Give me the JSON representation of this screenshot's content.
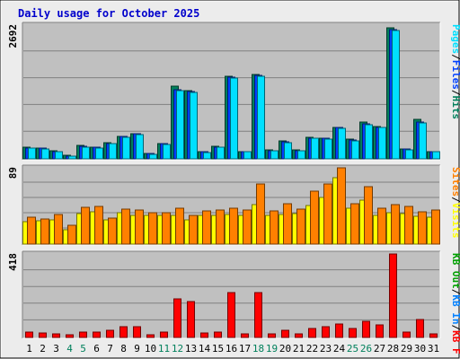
{
  "title": "Daily usage for October 2025",
  "colors": {
    "background": "#ececec",
    "plot": "#c0c0c0",
    "title": "#0000cc",
    "hits": "#00805c",
    "files": "#0040ff",
    "pages": "#00e0ff",
    "visits": "#ffff00",
    "sites": "#ff8000",
    "kb_out": "#00a000",
    "kb_in": "#0080ff",
    "kb_f": "#ff0000",
    "weekend_day": "#00805c",
    "weekday": "#000000"
  },
  "chart_data": [
    {
      "type": "bar",
      "panel": "hits-files-pages",
      "max_label": "2692",
      "ylim": [
        0,
        2692
      ],
      "categories": [
        "1",
        "2",
        "3",
        "4",
        "5",
        "6",
        "7",
        "8",
        "9",
        "10",
        "11",
        "12",
        "13",
        "14",
        "15",
        "16",
        "17",
        "18",
        "19",
        "20",
        "21",
        "22",
        "23",
        "24",
        "25",
        "26",
        "27",
        "28",
        "29",
        "30",
        "31"
      ],
      "weekend_days": [
        "4",
        "5",
        "11",
        "12",
        "18",
        "19",
        "25",
        "26"
      ],
      "legend": [
        {
          "label": "Hits",
          "color": "#00805c"
        },
        {
          "label": "/",
          "color": "#000000"
        },
        {
          "label": "Files",
          "color": "#0040ff"
        },
        {
          "label": "/",
          "color": "#000000"
        },
        {
          "label": "Pages",
          "color": "#00e0ff"
        }
      ],
      "series": [
        {
          "name": "Hits",
          "color": "#00805c",
          "values": [
            230,
            220,
            160,
            70,
            270,
            240,
            320,
            460,
            510,
            110,
            310,
            1460,
            1370,
            140,
            250,
            1660,
            150,
            1700,
            180,
            370,
            180,
            440,
            420,
            640,
            400,
            740,
            650,
            2640,
            190,
            800,
            140
          ]
        },
        {
          "name": "Files",
          "color": "#0040ff",
          "values": [
            220,
            210,
            150,
            60,
            250,
            230,
            310,
            450,
            500,
            100,
            300,
            1400,
            1350,
            140,
            240,
            1640,
            150,
            1680,
            170,
            340,
            170,
            420,
            410,
            630,
            380,
            700,
            640,
            2600,
            190,
            740,
            140
          ]
        },
        {
          "name": "Pages",
          "color": "#00e0ff",
          "values": [
            210,
            200,
            140,
            50,
            240,
            220,
            300,
            440,
            490,
            90,
            290,
            1380,
            1340,
            130,
            230,
            1630,
            140,
            1660,
            160,
            330,
            160,
            410,
            400,
            620,
            370,
            680,
            630,
            2580,
            180,
            720,
            140
          ]
        }
      ]
    },
    {
      "type": "bar",
      "panel": "visits-sites",
      "max_label": "89",
      "ylim": [
        0,
        89
      ],
      "legend": [
        {
          "label": "Visits",
          "color": "#ffff00"
        },
        {
          "label": "/",
          "color": "#000000"
        },
        {
          "label": "Sites",
          "color": "#ff8000"
        }
      ],
      "series": [
        {
          "name": "Visits",
          "color": "#ffff00",
          "values": [
            26,
            27,
            28,
            17,
            36,
            38,
            28,
            37,
            34,
            33,
            34,
            34,
            28,
            33,
            33,
            35,
            33,
            46,
            34,
            35,
            36,
            45,
            54,
            78,
            42,
            51,
            34,
            37,
            36,
            32,
            31
          ]
        },
        {
          "name": "Sites",
          "color": "#ff8000",
          "values": [
            31,
            29,
            35,
            22,
            43,
            44,
            30,
            41,
            40,
            37,
            37,
            42,
            33,
            39,
            40,
            42,
            40,
            70,
            39,
            47,
            41,
            62,
            70,
            89,
            47,
            67,
            42,
            46,
            44,
            38,
            40
          ]
        }
      ]
    },
    {
      "type": "bar",
      "panel": "kbytes",
      "max_label": "418",
      "ylim": [
        0,
        418
      ],
      "legend": [
        {
          "label": "KB F",
          "color": "#ff0000"
        },
        {
          "label": "/",
          "color": "#000000"
        },
        {
          "label": "KB In",
          "color": "#0080ff"
        },
        {
          "label": "/",
          "color": "#000000"
        },
        {
          "label": "KB Out",
          "color": "#00a000"
        }
      ],
      "series": [
        {
          "name": "KB F",
          "color": "#ff0000",
          "values": [
            27,
            24,
            18,
            12,
            27,
            27,
            36,
            54,
            54,
            12,
            27,
            195,
            180,
            22,
            27,
            225,
            18,
            223,
            19,
            38,
            18,
            45,
            52,
            69,
            47,
            82,
            62,
            418,
            25,
            90,
            20
          ]
        }
      ]
    }
  ]
}
